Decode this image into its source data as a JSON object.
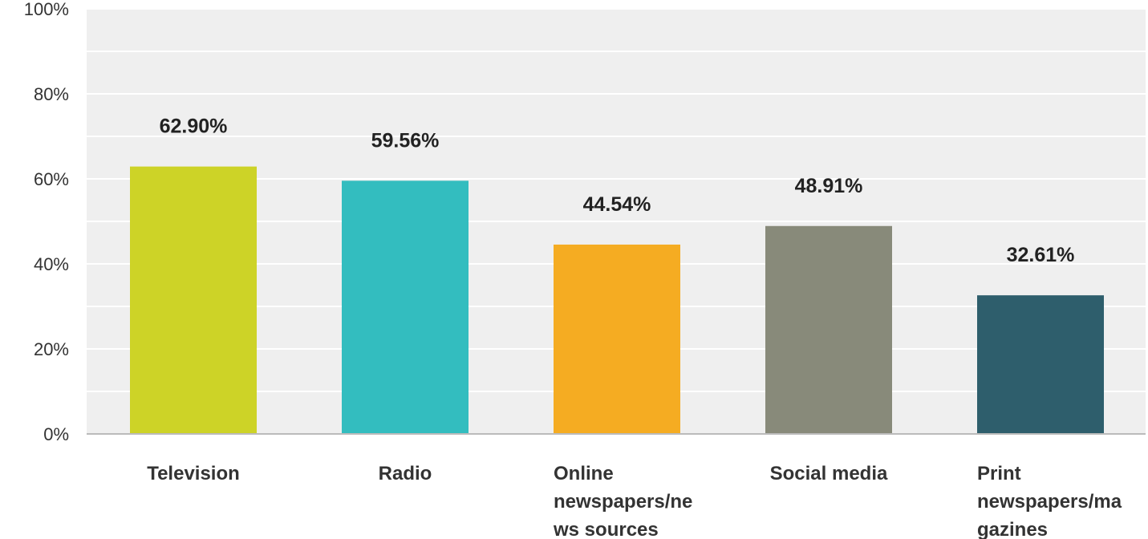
{
  "chart_data": {
    "type": "bar",
    "title": "",
    "xlabel": "",
    "ylabel": "",
    "ylim": [
      0,
      100
    ],
    "y_ticks": [
      0,
      20,
      40,
      60,
      80,
      100
    ],
    "y_tick_labels": [
      "0%",
      "20%",
      "40%",
      "60%",
      "80%",
      "100%"
    ],
    "grid": true,
    "categories": [
      [
        "Television"
      ],
      [
        "Radio"
      ],
      [
        "Online",
        "newspapers/ne",
        "ws sources"
      ],
      [
        "Social media"
      ],
      [
        "Print",
        "newspapers/ma",
        "gazines"
      ]
    ],
    "values": [
      62.9,
      59.56,
      44.54,
      48.91,
      32.61
    ],
    "data_labels": [
      "62.90%",
      "59.56%",
      "44.54%",
      "48.91%",
      "32.61%"
    ],
    "colors": [
      "#cdd327",
      "#33bdbf",
      "#f5ac22",
      "#888a7a",
      "#2e5e6c"
    ],
    "plot_background": "#efefef",
    "gridline_color": "#ffffff"
  }
}
